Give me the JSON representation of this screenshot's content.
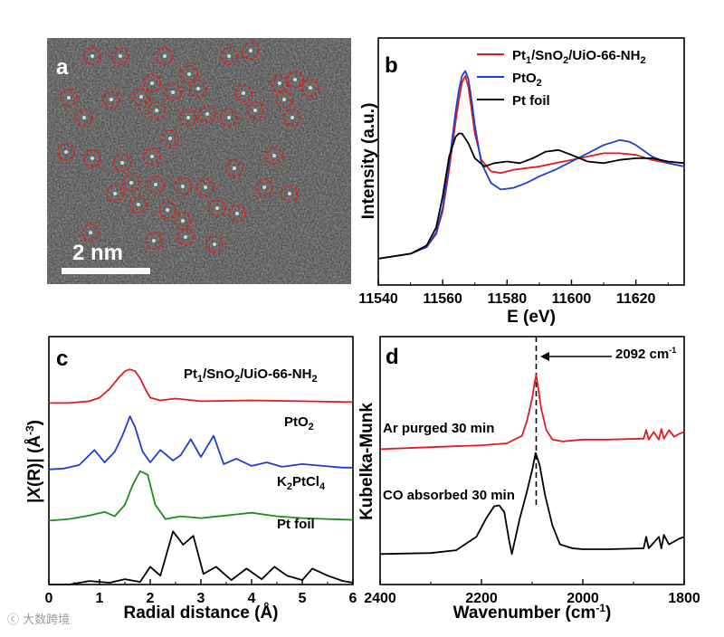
{
  "chart_data": [
    {
      "panel": "a",
      "type": "image",
      "scale_bar_label": "2 nm",
      "marked_atom_count": 45
    },
    {
      "panel": "b",
      "type": "line",
      "xlabel": "E (eV)",
      "ylabel": "Intensity (a.u.)",
      "xlim": [
        11540,
        11635
      ],
      "ylim": [
        0,
        1.5
      ],
      "xticks": [
        11540,
        11560,
        11580,
        11600,
        11620
      ],
      "series": [
        {
          "name": "Pt1/SnO2/UiO-66-NH2",
          "color": "#e31a1c",
          "x": [
            11540,
            11550,
            11555,
            11558,
            11560,
            11562,
            11564,
            11565,
            11566,
            11567,
            11568,
            11569,
            11570,
            11572,
            11575,
            11578,
            11582,
            11586,
            11590,
            11595,
            11600,
            11605,
            11610,
            11615,
            11620,
            11625,
            11630,
            11635
          ],
          "y": [
            0.16,
            0.19,
            0.23,
            0.31,
            0.45,
            0.7,
            0.99,
            1.12,
            1.23,
            1.27,
            1.2,
            1.06,
            0.92,
            0.76,
            0.69,
            0.68,
            0.7,
            0.71,
            0.72,
            0.74,
            0.76,
            0.78,
            0.8,
            0.8,
            0.79,
            0.76,
            0.74,
            0.72
          ]
        },
        {
          "name": "PtO2",
          "color": "#1f3fd0",
          "x": [
            11540,
            11550,
            11555,
            11558,
            11560,
            11562,
            11564,
            11565,
            11566,
            11567,
            11568,
            11569,
            11570,
            11572,
            11575,
            11578,
            11582,
            11586,
            11590,
            11595,
            11600,
            11605,
            11610,
            11615,
            11618,
            11620,
            11625,
            11630,
            11635
          ],
          "y": [
            0.16,
            0.19,
            0.23,
            0.32,
            0.47,
            0.74,
            1.05,
            1.18,
            1.27,
            1.3,
            1.25,
            1.12,
            0.97,
            0.74,
            0.62,
            0.58,
            0.59,
            0.62,
            0.66,
            0.7,
            0.75,
            0.8,
            0.85,
            0.88,
            0.87,
            0.85,
            0.78,
            0.74,
            0.72
          ]
        },
        {
          "name": "Pt foil",
          "color": "#000000",
          "x": [
            11540,
            11550,
            11555,
            11558,
            11560,
            11562,
            11564,
            11565,
            11566,
            11568,
            11570,
            11573,
            11576,
            11580,
            11584,
            11588,
            11592,
            11596,
            11600,
            11605,
            11610,
            11615,
            11620,
            11625,
            11630,
            11635
          ],
          "y": [
            0.16,
            0.19,
            0.24,
            0.35,
            0.54,
            0.78,
            0.9,
            0.92,
            0.92,
            0.86,
            0.77,
            0.72,
            0.74,
            0.75,
            0.74,
            0.77,
            0.81,
            0.82,
            0.79,
            0.75,
            0.74,
            0.76,
            0.77,
            0.77,
            0.75,
            0.74
          ]
        }
      ]
    },
    {
      "panel": "c",
      "type": "line",
      "xlabel": "Radial distance (Å)",
      "ylabel": "|X(R)| (Å⁻³)",
      "xlim": [
        0,
        6
      ],
      "ylim": [
        0,
        2.8
      ],
      "xticks": [
        0,
        1,
        2,
        3,
        4,
        5,
        6
      ],
      "series": [
        {
          "name": "Pt1/SnO2/UiO-66-NH2",
          "color": "#e31a1c",
          "offset": 2.05,
          "x": [
            0,
            0.4,
            0.8,
            1.0,
            1.2,
            1.4,
            1.5,
            1.6,
            1.7,
            1.8,
            1.9,
            2.0,
            2.2,
            2.5,
            3.0,
            4.0,
            5.0,
            6.0
          ],
          "y": [
            0,
            0.0,
            0.02,
            0.06,
            0.16,
            0.3,
            0.36,
            0.38,
            0.36,
            0.28,
            0.16,
            0.06,
            0.03,
            0.05,
            0.02,
            0.03,
            0.02,
            0.01
          ]
        },
        {
          "name": "PtO2",
          "color": "#1f3fd0",
          "offset": 1.3,
          "x": [
            0,
            0.3,
            0.6,
            0.9,
            1.1,
            1.3,
            1.45,
            1.6,
            1.7,
            1.85,
            2.0,
            2.2,
            2.45,
            2.6,
            2.8,
            3.0,
            3.25,
            3.45,
            3.7,
            4.0,
            4.3,
            4.6,
            5.0,
            5.4,
            5.8,
            6.0
          ],
          "y": [
            0,
            0.01,
            0.05,
            0.22,
            0.08,
            0.2,
            0.38,
            0.6,
            0.48,
            0.2,
            0.08,
            0.22,
            0.1,
            0.16,
            0.34,
            0.14,
            0.38,
            0.06,
            0.12,
            0.04,
            0.08,
            0.03,
            0.06,
            0.04,
            0.02,
            0.02
          ]
        },
        {
          "name": "K2PtCl4",
          "color": "#1f8c1f",
          "offset": 0.72,
          "x": [
            0,
            0.4,
            0.8,
            1.1,
            1.3,
            1.5,
            1.65,
            1.8,
            1.95,
            2.1,
            2.3,
            2.6,
            3.0,
            3.5,
            4.0,
            4.5,
            5.0,
            5.5,
            6.0
          ],
          "y": [
            0,
            0.02,
            0.06,
            0.1,
            0.05,
            0.18,
            0.4,
            0.56,
            0.52,
            0.18,
            0.02,
            0.05,
            0.03,
            0.06,
            0.09,
            0.05,
            0.03,
            0.02,
            0.01
          ]
        },
        {
          "name": "Pt foil",
          "color": "#000000",
          "offset": 0.0,
          "x": [
            0,
            0.4,
            0.8,
            1.2,
            1.5,
            1.8,
            2.0,
            2.2,
            2.45,
            2.65,
            2.85,
            3.05,
            3.3,
            3.6,
            3.9,
            4.2,
            4.45,
            4.7,
            5.0,
            5.2,
            5.5,
            5.8,
            6.0
          ],
          "y": [
            0.0,
            0.0,
            0.04,
            0.02,
            0.06,
            0.03,
            0.2,
            0.1,
            0.6,
            0.45,
            0.55,
            0.12,
            0.2,
            0.05,
            0.18,
            0.06,
            0.2,
            0.1,
            0.05,
            0.18,
            0.1,
            0.04,
            0.02
          ]
        }
      ]
    },
    {
      "panel": "d",
      "type": "line",
      "xlabel": "Wavenumber (cm⁻¹)",
      "ylabel": "Kubelka-Munk",
      "xlim": [
        2400,
        1800
      ],
      "ylim": [
        0,
        2.6
      ],
      "xticks": [
        2400,
        2200,
        2000,
        1800
      ],
      "annotation": "2092 cm⁻¹",
      "annotation_x": 2092,
      "series": [
        {
          "name": "Ar purged 30 min",
          "color": "#e31a1c",
          "x": [
            2400,
            2300,
            2200,
            2150,
            2120,
            2110,
            2100,
            2095,
            2092,
            2088,
            2082,
            2072,
            2060,
            2040,
            2000,
            1950,
            1880,
            1875,
            1870,
            1860,
            1850,
            1845,
            1840,
            1830,
            1820,
            1810,
            1800
          ],
          "y": [
            1.42,
            1.44,
            1.46,
            1.48,
            1.56,
            1.72,
            1.95,
            2.12,
            2.2,
            2.06,
            1.84,
            1.62,
            1.52,
            1.5,
            1.52,
            1.52,
            1.53,
            1.62,
            1.52,
            1.6,
            1.52,
            1.63,
            1.53,
            1.62,
            1.55,
            1.58,
            1.6
          ]
        },
        {
          "name": "CO absorbed 30 min",
          "color": "#000000",
          "x": [
            2400,
            2300,
            2250,
            2210,
            2190,
            2175,
            2165,
            2155,
            2145,
            2140,
            2125,
            2110,
            2100,
            2093,
            2085,
            2075,
            2060,
            2045,
            2020,
            2000,
            1950,
            1880,
            1875,
            1870,
            1850,
            1845,
            1840,
            1830,
            1810,
            1800
          ],
          "y": [
            0.32,
            0.33,
            0.36,
            0.5,
            0.7,
            0.82,
            0.83,
            0.76,
            0.45,
            0.32,
            0.68,
            0.98,
            1.2,
            1.38,
            1.25,
            0.95,
            0.62,
            0.42,
            0.38,
            0.37,
            0.37,
            0.38,
            0.5,
            0.38,
            0.5,
            0.38,
            0.52,
            0.42,
            0.48,
            0.5
          ]
        }
      ]
    }
  ],
  "panels": {
    "a": {
      "letter": "a"
    },
    "b": {
      "letter": "b"
    },
    "c": {
      "letter": "c"
    },
    "d": {
      "letter": "d"
    }
  },
  "watermark": "大数跨境",
  "colors": {
    "red": "#e31a1c",
    "blue": "#1f3fd0",
    "green": "#1f8c1f",
    "black": "#000000",
    "circle": "#e0201c"
  }
}
